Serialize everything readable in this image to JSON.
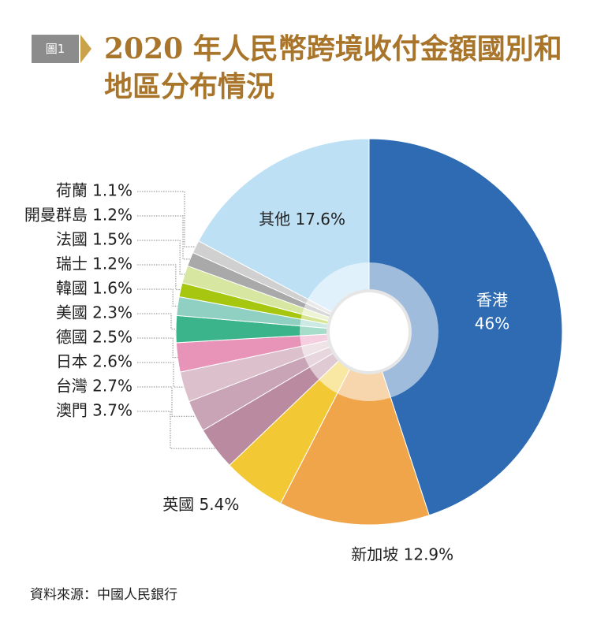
{
  "figure": {
    "badge": "圖1",
    "title": "2020 年人民幣跨境收付金額國別和地區分布情況",
    "source": "資料來源：中國人民銀行"
  },
  "chart_data": {
    "type": "pie",
    "unit": "%",
    "slices": [
      {
        "name": "香港",
        "value": 46,
        "label": "46%",
        "color": "#2e6bb3"
      },
      {
        "name": "新加坡",
        "value": 12.9,
        "label": "12.9%",
        "color": "#f0a54a"
      },
      {
        "name": "英國",
        "value": 5.4,
        "label": "5.4%",
        "color": "#f2c935"
      },
      {
        "name": "澳門",
        "value": 3.7,
        "label": "3.7%",
        "color": "#b98aa0"
      },
      {
        "name": "台灣",
        "value": 2.7,
        "label": "2.7%",
        "color": "#c9a4b6"
      },
      {
        "name": "日本",
        "value": 2.6,
        "label": "2.6%",
        "color": "#dcc0cc"
      },
      {
        "name": "德國",
        "value": 2.5,
        "label": "2.5%",
        "color": "#e893b8"
      },
      {
        "name": "美國",
        "value": 2.3,
        "label": "2.3%",
        "color": "#3bb38b"
      },
      {
        "name": "韓國",
        "value": 1.6,
        "label": "1.6%",
        "color": "#8fd0c2"
      },
      {
        "name": "瑞士",
        "value": 1.2,
        "label": "1.2%",
        "color": "#a6c60f"
      },
      {
        "name": "法國",
        "value": 1.5,
        "label": "1.5%",
        "color": "#d7e7a2"
      },
      {
        "name": "開曼群島",
        "value": 1.2,
        "label": "1.2%",
        "color": "#a9a9a9"
      },
      {
        "name": "荷蘭",
        "value": 1.1,
        "label": "1.1%",
        "color": "#d0d0d0"
      },
      {
        "name": "其他",
        "value": 17.6,
        "label": "17.6%",
        "color": "#bde0f5"
      }
    ]
  }
}
